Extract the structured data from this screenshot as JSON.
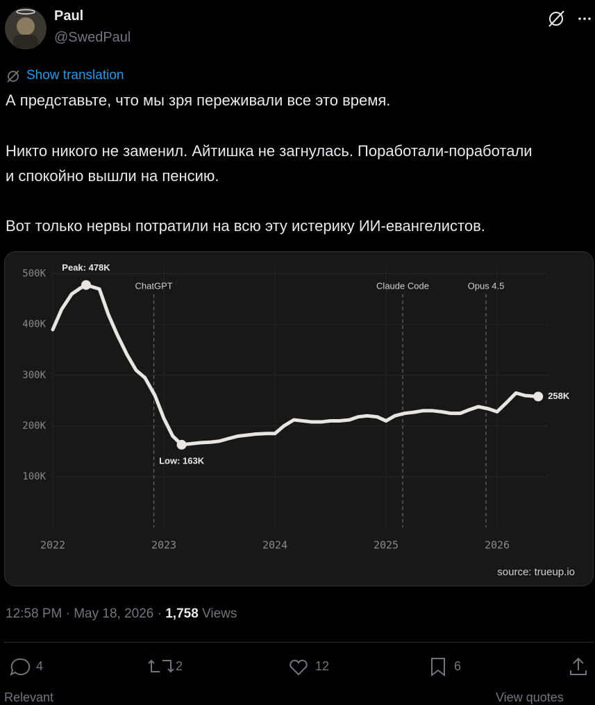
{
  "author": {
    "name": "Paul",
    "handle": "@SwedPaul"
  },
  "translate": "Show translation",
  "paragraphs": [
    "А представьте, что мы зря переживали все это время.",
    "Никто никого не заменил. Айтишка не загнулась. Поработали-поработали и спокойно вышли на пенсию.",
    "Вот только нервы потратили на всю эту истерику ИИ-евангелистов."
  ],
  "chart_data": {
    "type": "line",
    "x": [
      2022.0,
      2022.08,
      2022.17,
      2022.25,
      2022.3,
      2022.42,
      2022.5,
      2022.58,
      2022.67,
      2022.75,
      2022.83,
      2022.92,
      2023.0,
      2023.08,
      2023.16,
      2023.25,
      2023.33,
      2023.42,
      2023.5,
      2023.58,
      2023.67,
      2023.75,
      2023.83,
      2023.92,
      2024.0,
      2024.08,
      2024.17,
      2024.25,
      2024.33,
      2024.42,
      2024.5,
      2024.58,
      2024.67,
      2024.75,
      2024.83,
      2024.92,
      2025.0,
      2025.08,
      2025.17,
      2025.25,
      2025.33,
      2025.42,
      2025.5,
      2025.58,
      2025.67,
      2025.75,
      2025.83,
      2025.92,
      2026.0,
      2026.08,
      2026.17,
      2026.25,
      2026.37
    ],
    "values": [
      390000,
      430000,
      460000,
      472000,
      478000,
      470000,
      420000,
      380000,
      340000,
      310000,
      295000,
      260000,
      215000,
      180000,
      163000,
      165000,
      167000,
      168000,
      170000,
      175000,
      180000,
      182000,
      184000,
      185000,
      185000,
      200000,
      212000,
      210000,
      208000,
      208000,
      210000,
      210000,
      212000,
      218000,
      220000,
      218000,
      210000,
      220000,
      225000,
      227000,
      230000,
      230000,
      228000,
      225000,
      225000,
      232000,
      238000,
      234000,
      228000,
      245000,
      265000,
      260000,
      258000
    ],
    "color": "#e8e6e3",
    "xlim": [
      2022,
      2026.5
    ],
    "xticks": [
      2022,
      2023,
      2024,
      2025,
      2026
    ],
    "ylim": [
      0,
      520000
    ],
    "yticks": [
      {
        "value": 100000,
        "label": "100K"
      },
      {
        "value": 200000,
        "label": "200K"
      },
      {
        "value": 300000,
        "label": "300K"
      },
      {
        "value": 400000,
        "label": "400K"
      },
      {
        "value": 500000,
        "label": "500K"
      }
    ],
    "grid": true,
    "annotations": [
      {
        "text": "Peak: 478K",
        "x": 2022.3,
        "value": 478000,
        "position": "above"
      },
      {
        "text": "Low: 163K",
        "x": 2023.16,
        "value": 163000,
        "position": "below"
      },
      {
        "text": "258K",
        "x": 2026.37,
        "value": 258000,
        "position": "right"
      }
    ],
    "events": [
      {
        "label": "ChatGPT",
        "x": 2022.91
      },
      {
        "label": "Claude Code",
        "x": 2025.15
      },
      {
        "label": "Opus 4.5",
        "x": 2025.9
      }
    ],
    "source": "source: trueup.io"
  },
  "meta": {
    "time": "12:58 PM · May 18, 2026 ·",
    "views": "1,758",
    "views_label": "Views"
  },
  "actions": {
    "replies": 4,
    "reposts": 2,
    "likes": 12,
    "bookmarks": 6
  },
  "tabs": {
    "left": "Relevant",
    "right": "View quotes"
  }
}
